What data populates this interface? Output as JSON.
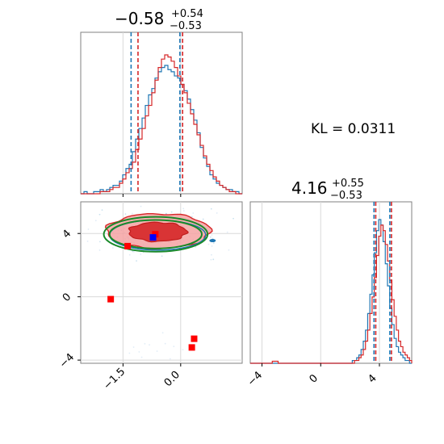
{
  "chart_data": [
    {
      "type": "histogram",
      "panel": "top-left",
      "title": {
        "value": "−0.58",
        "sup": "+0.54",
        "sub": "−0.53"
      },
      "xlim": [
        -2.6,
        1.6
      ],
      "x_ticks": [
        -1.5,
        0.0
      ],
      "series": [
        {
          "color": "#1f77b4",
          "bin_start": -2.6,
          "bin_end": 1.6,
          "counts": [
            0,
            1,
            0,
            0,
            1,
            1,
            2,
            1,
            2,
            3,
            4,
            4,
            6,
            9,
            12,
            14,
            20,
            26,
            31,
            36,
            42,
            47,
            50,
            55,
            58,
            60,
            61,
            59,
            58,
            56,
            55,
            52,
            49,
            45,
            40,
            35,
            29,
            22,
            17,
            13,
            9,
            7,
            5,
            4,
            3,
            2,
            2,
            1,
            1,
            0
          ]
        },
        {
          "color": "#d62728",
          "bin_start": -2.6,
          "bin_end": 1.6,
          "counts": [
            0,
            0,
            0,
            0,
            0,
            0,
            1,
            1,
            1,
            2,
            3,
            3,
            5,
            7,
            10,
            12,
            15,
            21,
            26,
            31,
            37,
            42,
            48,
            54,
            60,
            64,
            66,
            65,
            63,
            60,
            56,
            52,
            48,
            43,
            38,
            33,
            28,
            23,
            18,
            14,
            11,
            8,
            6,
            4,
            3,
            2,
            1,
            1,
            0,
            0
          ]
        }
      ],
      "quantiles": [
        {
          "color": "#1f77b4",
          "values": [
            -1.29,
            -0.02
          ]
        },
        {
          "color": "#d62728",
          "values": [
            -1.11,
            0.05
          ]
        }
      ]
    },
    {
      "type": "contour",
      "panel": "bottom-left",
      "xlim": [
        -2.6,
        1.6
      ],
      "ylim": [
        -4.2,
        6.0
      ],
      "x_ticks": [
        -1.5,
        0.0
      ],
      "x_tick_labels": [
        "−1.5",
        "0.0"
      ],
      "y_ticks": [
        -4,
        0,
        4
      ],
      "y_tick_labels": [
        "−4",
        "0",
        "4"
      ],
      "red_fill_ellipses": [
        {
          "cx": -0.58,
          "cy": 4.15,
          "rx": 1.35,
          "ry": 1.1
        },
        {
          "cx": -0.6,
          "cy": 4.1,
          "rx": 0.75,
          "ry": 0.6
        }
      ],
      "green_ellipses": [
        {
          "cx": -0.65,
          "cy": 3.95,
          "rx": 1.2,
          "ry": 0.9
        },
        {
          "cx": -0.65,
          "cy": 3.95,
          "rx": 1.35,
          "ry": 1.1
        }
      ],
      "blue_ellipses": [
        {
          "cx": -0.6,
          "cy": 3.9,
          "rx": 1.25,
          "ry": 0.95
        }
      ],
      "red_points": [
        {
          "x": -1.82,
          "y": -0.15
        },
        {
          "x": 0.35,
          "y": -2.65
        },
        {
          "x": 0.29,
          "y": -3.2
        },
        {
          "x": -1.38,
          "y": 3.2
        }
      ],
      "blue_point": {
        "x": -0.72,
        "y": 3.75
      },
      "red_center_point": {
        "x": -0.66,
        "y": 3.95
      },
      "blue_small_ellipse": {
        "x": 0.83,
        "y": 3.55
      }
    },
    {
      "type": "histogram",
      "panel": "bottom-right",
      "title": {
        "value": "4.16",
        "sup": "+0.55",
        "sub": "−0.53"
      },
      "xlim": [
        -4.8,
        6.2
      ],
      "x_ticks": [
        -4,
        0,
        4
      ],
      "x_tick_labels": [
        "−4",
        "0",
        "4"
      ],
      "series": [
        {
          "color": "#1f77b4",
          "bin_start": 2.0,
          "bin_end": 6.2,
          "counts": [
            0,
            1,
            1,
            2,
            3,
            5,
            8,
            12,
            18,
            25,
            32,
            40,
            48,
            52,
            50,
            44,
            36,
            28,
            20,
            14,
            9,
            6,
            4,
            3,
            2,
            1,
            1,
            0
          ]
        },
        {
          "color": "#d62728",
          "bin_start": 2.0,
          "bin_end": 6.2,
          "counts": [
            0,
            0,
            1,
            1,
            2,
            3,
            5,
            8,
            12,
            18,
            24,
            31,
            39,
            46,
            50,
            48,
            43,
            37,
            30,
            23,
            17,
            12,
            8,
            6,
            4,
            3,
            2,
            1
          ]
        }
      ],
      "outlier_red": {
        "x_start": -3.3,
        "x_end": -2.9,
        "count": 1
      },
      "quantiles": [
        {
          "color": "#1f77b4",
          "values": [
            3.63,
            4.71
          ]
        },
        {
          "color": "#d62728",
          "values": [
            3.75,
            4.82
          ]
        }
      ]
    }
  ],
  "annotation": {
    "text": "KL = 0.0311"
  }
}
